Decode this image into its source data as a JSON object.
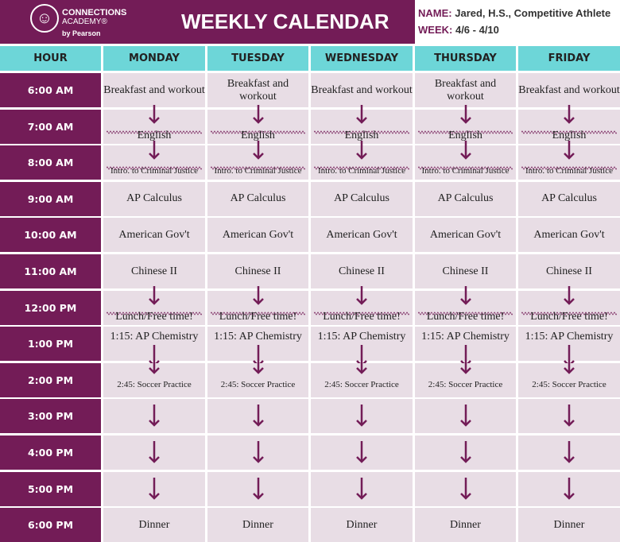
{
  "header": {
    "logo_line1": "CONNECTIONS",
    "logo_line2": "ACADEMY®",
    "logo_line3": "by Pearson",
    "title": "WEEKLY CALENDAR",
    "name_label": "NAME:",
    "name_value": "Jared, H.S., Competitive Athlete",
    "week_label": "WEEK:",
    "week_value": "4/6 - 4/10"
  },
  "colors": {
    "primary": "#731c57",
    "header_row": "#6dd6d8",
    "cell": "#e8dde5"
  },
  "columns": [
    "HOUR",
    "MONDAY",
    "TUESDAY",
    "WEDNESDAY",
    "THURSDAY",
    "FRIDAY"
  ],
  "rows": [
    {
      "hour": "6:00 AM",
      "type": "text",
      "text": "Breakfast and workout"
    },
    {
      "hour": "7:00 AM",
      "type": "arrow-wave-text",
      "text": "English"
    },
    {
      "hour": "8:00 AM",
      "type": "arrow-wave-text",
      "text": "Intro. to Criminal Justice",
      "small": true
    },
    {
      "hour": "9:00 AM",
      "type": "text",
      "text": "AP Calculus"
    },
    {
      "hour": "10:00 AM",
      "type": "text",
      "text": "American Gov't"
    },
    {
      "hour": "11:00 AM",
      "type": "text",
      "text": "Chinese II"
    },
    {
      "hour": "12:00 PM",
      "type": "arrow-wave-text",
      "text": "Lunch/Free time!"
    },
    {
      "hour": "1:00 PM",
      "type": "text-top",
      "text": "1:15: AP Chemistry"
    },
    {
      "hour": "2:00 PM",
      "type": "arrow-text",
      "text": "2:45: Soccer Practice",
      "small": true
    },
    {
      "hour": "3:00 PM",
      "type": "arrow",
      "text": ""
    },
    {
      "hour": "4:00 PM",
      "type": "arrow",
      "text": ""
    },
    {
      "hour": "5:00 PM",
      "type": "arrow",
      "text": ""
    },
    {
      "hour": "6:00 PM",
      "type": "text",
      "text": "Dinner"
    }
  ]
}
